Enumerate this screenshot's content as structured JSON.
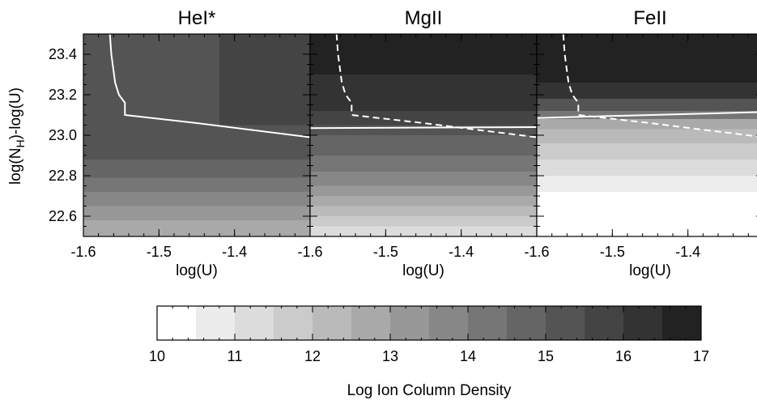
{
  "chart_data": {
    "type": "heatmap",
    "ylabel": "log(N_H)-log(U)",
    "ylabel_main": "log(N",
    "ylabel_sub": "H",
    "ylabel_tail": ")-log(U)",
    "ylim": [
      22.5,
      23.5
    ],
    "yticks": [
      22.6,
      22.8,
      23.0,
      23.2,
      23.4
    ],
    "ytick_labels": [
      "22.6",
      "22.8",
      "23.0",
      "23.2",
      "23.4"
    ],
    "xlim": [
      -1.6,
      -1.3
    ],
    "xticks": [
      -1.6,
      -1.5,
      -1.4
    ],
    "xtick_labels": [
      "-1.6",
      "-1.5",
      "-1.4"
    ],
    "xlabel": "log(U)",
    "panels": [
      {
        "title": "HeI*",
        "bands": [
          {
            "y0": 22.5,
            "y1": 22.58,
            "level": 12.5
          },
          {
            "y0": 22.58,
            "y1": 22.65,
            "level": 13.0
          },
          {
            "y0": 22.65,
            "y1": 22.72,
            "level": 13.5
          },
          {
            "y0": 22.72,
            "y1": 22.79,
            "level": 14.0
          },
          {
            "y0": 22.79,
            "y1": 22.88,
            "level": 14.5
          },
          {
            "y0": 22.88,
            "y1": 23.5,
            "level": 15.0
          }
        ],
        "patches": [
          {
            "x0": -1.42,
            "x1": -1.3,
            "y0": 23.05,
            "y1": 23.5,
            "level": 15.5
          }
        ],
        "solid_contour": {
          "x": [
            -1.565,
            -1.563,
            -1.558,
            -1.553,
            -1.545,
            -1.545,
            -1.45,
            -1.3
          ],
          "y": [
            23.5,
            23.4,
            23.26,
            23.2,
            23.16,
            23.1,
            23.06,
            22.99
          ]
        },
        "dashed_contour": null
      },
      {
        "title": "MgII",
        "bands": [
          {
            "y0": 22.5,
            "y1": 22.55,
            "level": 11.0
          },
          {
            "y0": 22.55,
            "y1": 22.6,
            "level": 11.5
          },
          {
            "y0": 22.6,
            "y1": 22.65,
            "level": 12.0
          },
          {
            "y0": 22.65,
            "y1": 22.7,
            "level": 12.5
          },
          {
            "y0": 22.7,
            "y1": 22.75,
            "level": 13.0
          },
          {
            "y0": 22.75,
            "y1": 22.82,
            "level": 13.5
          },
          {
            "y0": 22.82,
            "y1": 22.9,
            "level": 14.0
          },
          {
            "y0": 22.9,
            "y1": 23.0,
            "level": 14.5
          },
          {
            "y0": 23.0,
            "y1": 23.05,
            "level": 15.0
          },
          {
            "y0": 23.05,
            "y1": 23.12,
            "level": 15.5
          },
          {
            "y0": 23.12,
            "y1": 23.3,
            "level": 16.0
          },
          {
            "y0": 23.3,
            "y1": 23.5,
            "level": 17.0
          }
        ],
        "patches": [],
        "solid_contour": {
          "x": [
            -1.6,
            -1.3
          ],
          "y": [
            23.035,
            23.04
          ]
        },
        "dashed_contour": {
          "x": [
            -1.565,
            -1.563,
            -1.558,
            -1.553,
            -1.545,
            -1.545,
            -1.45,
            -1.3
          ],
          "y": [
            23.5,
            23.4,
            23.26,
            23.2,
            23.16,
            23.1,
            23.06,
            22.99
          ]
        }
      },
      {
        "title": "FeII",
        "bands": [
          {
            "y0": 22.5,
            "y1": 22.72,
            "level": 10.0
          },
          {
            "y0": 22.72,
            "y1": 22.8,
            "level": 10.5
          },
          {
            "y0": 22.8,
            "y1": 22.88,
            "level": 11.0
          },
          {
            "y0": 22.88,
            "y1": 22.96,
            "level": 11.5
          },
          {
            "y0": 22.96,
            "y1": 23.03,
            "level": 12.0
          },
          {
            "y0": 23.03,
            "y1": 23.08,
            "level": 12.5
          },
          {
            "y0": 23.08,
            "y1": 23.12,
            "level": 14.0
          },
          {
            "y0": 23.12,
            "y1": 23.18,
            "level": 15.0
          },
          {
            "y0": 23.18,
            "y1": 23.26,
            "level": 16.0
          },
          {
            "y0": 23.26,
            "y1": 23.5,
            "level": 17.0
          }
        ],
        "patches": [],
        "solid_contour": {
          "x": [
            -1.6,
            -1.3
          ],
          "y": [
            23.085,
            23.115
          ]
        },
        "dashed_contour": {
          "x": [
            -1.565,
            -1.563,
            -1.558,
            -1.553,
            -1.545,
            -1.545,
            -1.45,
            -1.3
          ],
          "y": [
            23.5,
            23.4,
            23.26,
            23.2,
            23.16,
            23.1,
            23.06,
            22.99
          ]
        }
      }
    ],
    "colorbar": {
      "label": "Log Ion Column Density",
      "range": [
        10,
        17
      ],
      "ticks": [
        10,
        11,
        12,
        13,
        14,
        15,
        16,
        17
      ],
      "tick_labels": [
        "10",
        "11",
        "12",
        "13",
        "14",
        "15",
        "16",
        "17"
      ],
      "colors": [
        "#ffffff",
        "#ececec",
        "#dcdcdc",
        "#cbcbcb",
        "#bababa",
        "#a9a9a9",
        "#989898",
        "#878787",
        "#767676",
        "#656565",
        "#545454",
        "#444444",
        "#333333",
        "#222222"
      ]
    }
  }
}
